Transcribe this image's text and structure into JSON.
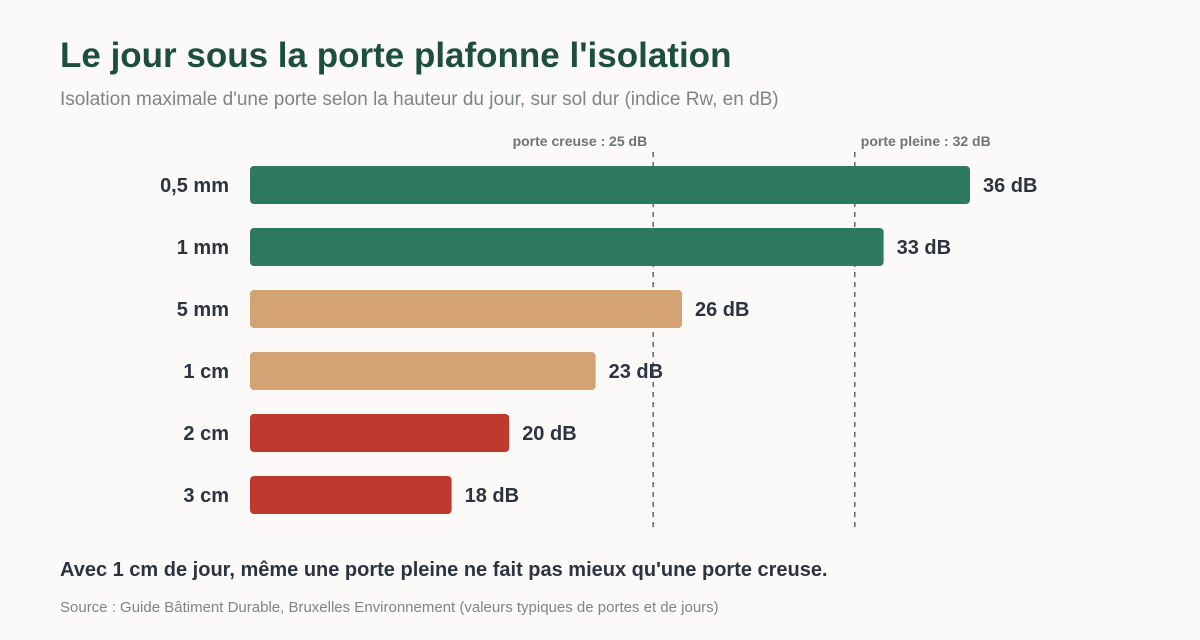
{
  "header": {
    "title": "Le jour sous la porte plafonne l'isolation",
    "subtitle": "Isolation maximale d'une porte selon la hauteur du jour, sur sol dur (indice Rw, en dB)"
  },
  "footer": {
    "takeaway": "Avec 1 cm de jour, même une porte pleine ne fait pas mieux qu'une porte creuse.",
    "source": "Source : Guide Bâtiment Durable, Bruxelles Environnement (valeurs typiques de portes et de jours)"
  },
  "chart_data": {
    "type": "bar",
    "orientation": "horizontal",
    "title": "Le jour sous la porte plafonne l'isolation",
    "subtitle": "Isolation maximale d'une porte selon la hauteur du jour, sur sol dur (indice Rw, en dB)",
    "categories": [
      "0,5 mm",
      "1 mm",
      "5 mm",
      "1 cm",
      "2 cm",
      "3 cm"
    ],
    "values": [
      36,
      33,
      26,
      23,
      20,
      18
    ],
    "value_labels": [
      "36 dB",
      "33 dB",
      "26 dB",
      "23 dB",
      "20 dB",
      "18 dB"
    ],
    "bar_colors": [
      "#2d7a5f",
      "#2d7a5f",
      "#d4a373",
      "#d4a373",
      "#bf3a2e",
      "#bf3a2e"
    ],
    "unit": "dB",
    "xlim": [
      11,
      36
    ],
    "reference_lines": [
      {
        "value": 25,
        "label": "porte creuse : 25 dB"
      },
      {
        "value": 32,
        "label": "porte pleine : 32 dB"
      }
    ],
    "grid": false,
    "legend": "none"
  }
}
